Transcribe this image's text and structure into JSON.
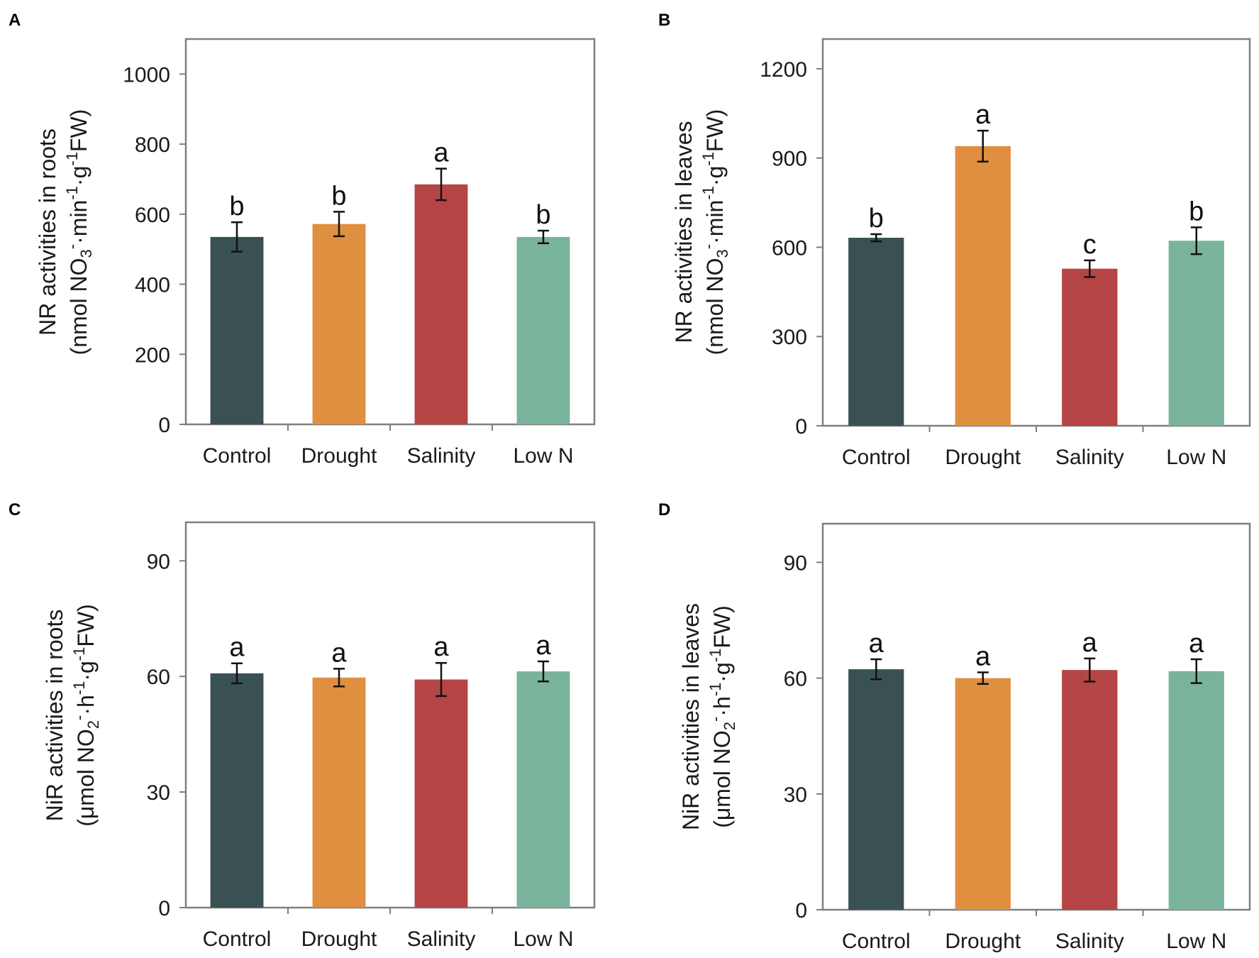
{
  "colors": {
    "Control": "#3a5154",
    "Drought": "#e08f41",
    "Salinity": "#b54545",
    "Low N": "#7ab39b"
  },
  "chart_data": [
    {
      "panel": "A",
      "type": "bar",
      "categories": [
        "Control",
        "Drought",
        "Salinity",
        "Low N"
      ],
      "values": [
        535,
        572,
        685,
        535
      ],
      "errors": [
        42,
        35,
        45,
        18
      ],
      "significance": [
        "b",
        "b",
        "a",
        "b"
      ],
      "ylim": [
        0,
        1100
      ],
      "yticks": [
        "0",
        "200",
        "400",
        "600",
        "800",
        "1000"
      ],
      "ylabel_line1": "NR activities in roots",
      "ylabel_line2": {
        "pre": "(nmol NO",
        "sub": "3",
        "sup1": "-",
        "mid1": "·min",
        "sup2": "-1",
        "mid2": "·g",
        "sup3": "-1",
        "post": "FW)"
      },
      "xlabel": ""
    },
    {
      "panel": "B",
      "type": "bar",
      "categories": [
        "Control",
        "Drought",
        "Salinity",
        "Low N"
      ],
      "values": [
        632,
        940,
        528,
        622
      ],
      "errors": [
        12,
        52,
        28,
        45
      ],
      "significance": [
        "b",
        "a",
        "c",
        "b"
      ],
      "ylim": [
        0,
        1300
      ],
      "yticks": [
        "0",
        "300",
        "600",
        "900",
        "1200"
      ],
      "ylabel_line1": "NR activities in leaves",
      "ylabel_line2": {
        "pre": "(nmol NO",
        "sub": "3",
        "sup1": "-",
        "mid1": "·min",
        "sup2": "-1",
        "mid2": "·g",
        "sup3": "-1",
        "post": "FW)"
      },
      "xlabel": ""
    },
    {
      "panel": "C",
      "type": "bar",
      "categories": [
        "Control",
        "Drought",
        "Salinity",
        "Low N"
      ],
      "values": [
        60.8,
        59.7,
        59.2,
        61.3
      ],
      "errors": [
        2.6,
        2.3,
        4.3,
        2.6
      ],
      "significance": [
        "a",
        "a",
        "a",
        "a"
      ],
      "ylim": [
        0,
        100
      ],
      "yticks": [
        "0",
        "30",
        "60",
        "90"
      ],
      "ylabel_line1": "NiR activities in roots",
      "ylabel_line2": {
        "pre": "(μmol NO",
        "sub": "2",
        "sup1": "-",
        "mid1": "·h",
        "sup2": "-1",
        "mid2": "·g",
        "sup3": "-1",
        "post": "FW)"
      },
      "xlabel": ""
    },
    {
      "panel": "D",
      "type": "bar",
      "categories": [
        "Control",
        "Drought",
        "Salinity",
        "Low N"
      ],
      "values": [
        62.3,
        60.0,
        62.1,
        61.8
      ],
      "errors": [
        2.6,
        1.5,
        3.0,
        3.1
      ],
      "significance": [
        "a",
        "a",
        "a",
        "a"
      ],
      "ylim": [
        0,
        100
      ],
      "yticks": [
        "0",
        "30",
        "60",
        "90"
      ],
      "ylabel_line1": "NiR activities in leaves",
      "ylabel_line2": {
        "pre": "(μmol NO",
        "sub": "2",
        "sup1": "-",
        "mid1": "·h",
        "sup2": "-1",
        "mid2": "·g",
        "sup3": "-1",
        "post": "FW)"
      },
      "xlabel": ""
    }
  ]
}
